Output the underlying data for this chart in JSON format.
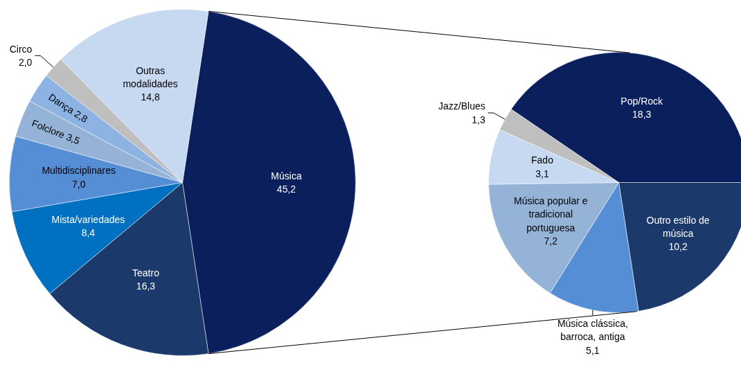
{
  "chart_data": [
    {
      "type": "pie",
      "categories": [
        "Música",
        "Teatro",
        "Mista/variedades",
        "Multidisciplinares",
        "Folclore",
        "Dança",
        "Circo",
        "Outras modalidades"
      ],
      "values": [
        45.2,
        16.3,
        8.4,
        7.0,
        3.5,
        2.8,
        2.0,
        14.8
      ],
      "colors": [
        "#0b1f5c",
        "#1b3a6b",
        "#0070c0",
        "#558ed5",
        "#95b3d7",
        "#8db3e2",
        "#bfbfbf",
        "#c6d9f1"
      ],
      "value_labels": [
        "45,2",
        "16,3",
        "8,4",
        "7,0",
        "3,5",
        "2,8",
        "2,0",
        "14,8"
      ]
    },
    {
      "type": "pie",
      "categories": [
        "Pop/Rock",
        "Outro estilo de música",
        "Música clássica, barroca, antiga",
        "Música popular e tradicional portuguesa",
        "Fado",
        "Jazz/Blues"
      ],
      "values": [
        18.3,
        10.2,
        5.1,
        7.2,
        3.1,
        1.3
      ],
      "colors": [
        "#0b1f5c",
        "#1b3a6b",
        "#558ed5",
        "#95b3d7",
        "#c6d9f1",
        "#bfbfbf"
      ],
      "value_labels": [
        "18,3",
        "10,2",
        "5,1",
        "7,2",
        "3,1",
        "1,3"
      ]
    }
  ]
}
